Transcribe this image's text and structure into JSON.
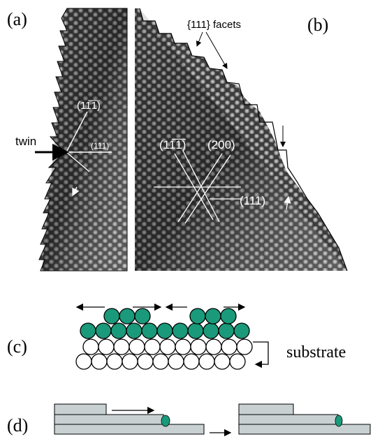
{
  "panels": {
    "a": {
      "label": "(a)",
      "plane_upper": "(11̅1̅)",
      "plane_right": "(111)",
      "twin": "twin"
    },
    "b": {
      "label": "(b)",
      "facets": "{111} facets",
      "plane_left": "(11̅1̅)",
      "plane_mid": "(200)",
      "plane_right": "(111)"
    },
    "c": {
      "label": "(c)",
      "substrate": "substrate"
    },
    "d": {
      "label": "(d)"
    }
  }
}
